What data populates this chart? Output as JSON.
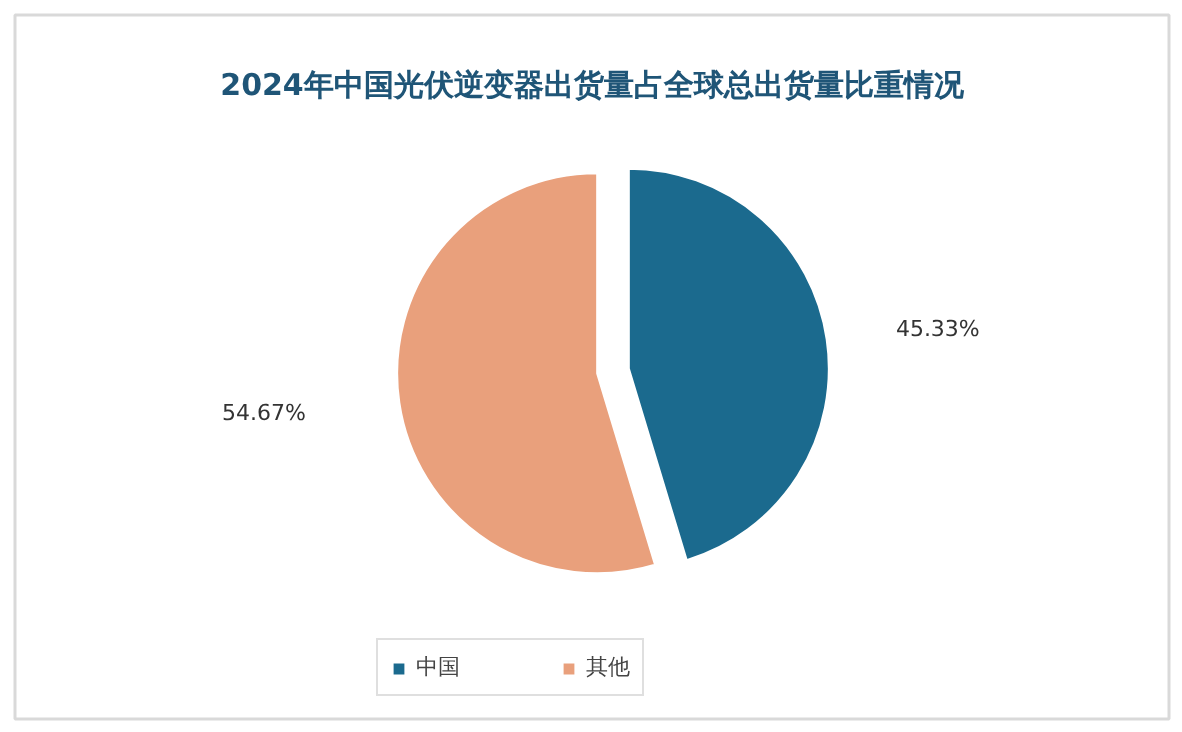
{
  "chart_data": {
    "type": "pie",
    "title": "2024年中国光伏逆变器出货量占全球总出货量比重情况",
    "categories": [
      "中国",
      "其他"
    ],
    "values": [
      45.33,
      54.67
    ],
    "colors": [
      "#1b6a8e",
      "#e9a07c"
    ],
    "value_labels": [
      "45.33%",
      "54.67%"
    ],
    "legend": "bottom"
  }
}
